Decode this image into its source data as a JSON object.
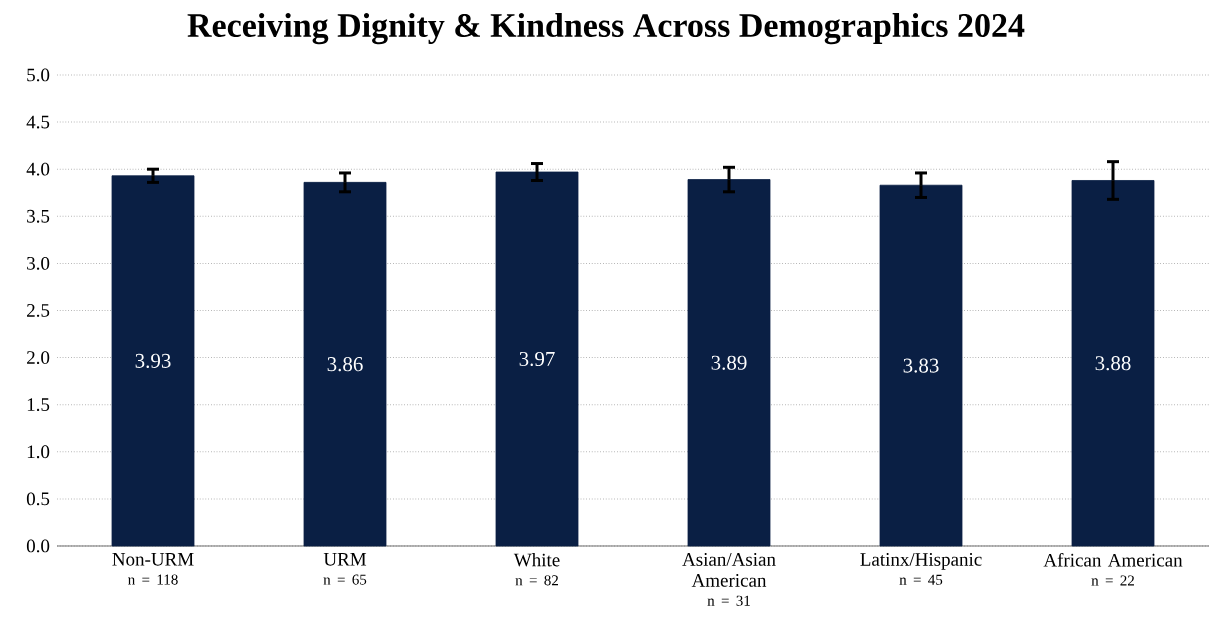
{
  "chart_data": {
    "type": "bar",
    "title": "Receiving Dignity & Kindness Across Demographics 2024",
    "categories": [
      "Non-URM",
      "URM",
      "White",
      "Asian/Asian American",
      "Latinx/Hispanic",
      "African American"
    ],
    "values": [
      3.93,
      3.86,
      3.97,
      3.89,
      3.83,
      3.88
    ],
    "errors": [
      0.07,
      0.1,
      0.09,
      0.13,
      0.13,
      0.2
    ],
    "color": "#0a1f44",
    "data_labels": true,
    "annotations": [
      "n = 118",
      "n = 65",
      "n = 82",
      "n = 31",
      "n = 45",
      "n = 22"
    ],
    "ylim": [
      0,
      5
    ],
    "yticks": [
      {
        "value": 0,
        "label": "0.0"
      },
      {
        "value": 0.5,
        "label": "0.5"
      },
      {
        "value": 1,
        "label": "1.0"
      },
      {
        "value": 1.5,
        "label": "1.5"
      },
      {
        "value": 2,
        "label": "2.0"
      },
      {
        "value": 2.5,
        "label": "2.5"
      },
      {
        "value": 3,
        "label": "3.0"
      },
      {
        "value": 3.5,
        "label": "3.5"
      },
      {
        "value": 4,
        "label": "4.0"
      },
      {
        "value": 4.5,
        "label": "4.5"
      },
      {
        "value": 5,
        "label": "5.0"
      }
    ],
    "grid": "y"
  }
}
